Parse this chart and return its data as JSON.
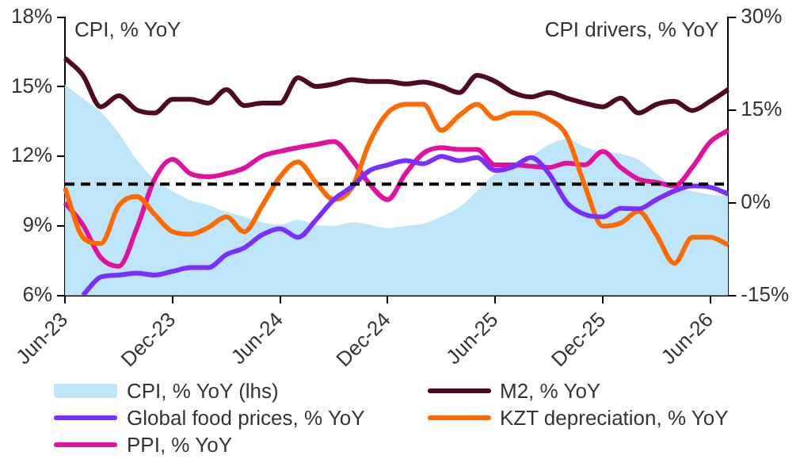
{
  "chart_data": {
    "type": "line",
    "ylabel": "CPI, % YoY",
    "y2label": "CPI drivers, % YoY",
    "categories": [
      "Jun-23",
      null,
      null,
      null,
      null,
      null,
      "Dec-23",
      null,
      null,
      null,
      null,
      null,
      "Jun-24",
      null,
      null,
      null,
      null,
      null,
      "Dec-24",
      null,
      null,
      null,
      null,
      null,
      "Jun-25",
      null,
      null,
      null,
      null,
      null,
      "Dec-25",
      null,
      null,
      null,
      null,
      null,
      "Jun-26",
      null
    ],
    "series": [
      {
        "name": "CPI, % YoY (lhs)",
        "type": "area",
        "color": "#bde6fa",
        "values": [
          15.1,
          14.5,
          13.9,
          13.0,
          11.85,
          11.0,
          10.5,
          10.1,
          9.9,
          9.6,
          9.4,
          9.15,
          9.05,
          9.25,
          9.05,
          9.0,
          9.15,
          9.05,
          8.9,
          9.0,
          9.1,
          9.4,
          9.8,
          10.5,
          11.25,
          11.6,
          12.0,
          12.5,
          12.75,
          12.4,
          12.2,
          12.1,
          11.85,
          11.25,
          10.7,
          10.5,
          10.35,
          10.3
        ]
      },
      {
        "name": "M2, % YoY",
        "axis": "y2",
        "color": "#4d0a22",
        "values": [
          23.4,
          20.6,
          15.5,
          17.3,
          15.0,
          14.5,
          16.7,
          16.7,
          16.1,
          18.3,
          15.7,
          16.1,
          16.1,
          20.2,
          18.8,
          19.2,
          19.9,
          19.6,
          19.6,
          19.2,
          19.5,
          18.8,
          17.8,
          20.6,
          19.6,
          17.8,
          17.1,
          17.8,
          16.9,
          16.1,
          15.5,
          16.9,
          14.5,
          15.9,
          16.4,
          14.9,
          16.4,
          18.3
        ]
      },
      {
        "name": "Global food prices, % YoY",
        "axis": "y2",
        "color": "#7b2fff",
        "values": [
          null,
          -15,
          -12.0,
          -11.7,
          -11.4,
          -11.7,
          -11.1,
          -10.5,
          -10.5,
          -8.4,
          -7.3,
          -5.2,
          -4.2,
          -5.6,
          -2.8,
          0.5,
          2.6,
          5.2,
          6.1,
          6.8,
          6.3,
          7.5,
          6.8,
          7.3,
          5.2,
          5.8,
          7.3,
          4.7,
          0.0,
          -1.9,
          -2.3,
          -0.9,
          -1.0,
          0.5,
          1.9,
          2.7,
          2.5,
          1.4
        ]
      },
      {
        "name": "KZT depreciation, % YoY",
        "axis": "y2",
        "color": "#ff6a00",
        "values": [
          2.4,
          -5.6,
          -6.6,
          -0.5,
          1.0,
          -1.9,
          -4.7,
          -5.1,
          -4.0,
          -2.3,
          -4.7,
          -0.5,
          4.2,
          6.6,
          3.3,
          0.5,
          2.4,
          9.8,
          14.5,
          15.9,
          15.9,
          11.7,
          14.1,
          15.9,
          13.6,
          14.5,
          14.5,
          13.5,
          10.8,
          2.8,
          -3.8,
          -3.3,
          -1.4,
          -5.2,
          -9.8,
          -5.6,
          -5.6,
          -6.8
        ]
      },
      {
        "name": "PPI, % YoY",
        "axis": "y2",
        "color": "#e0119d",
        "values": [
          0,
          -3.6,
          -8.9,
          -10.3,
          -4.2,
          3.8,
          7.0,
          4.7,
          4.2,
          4.7,
          5.6,
          7.5,
          8.3,
          8.9,
          9.4,
          9.9,
          7.0,
          3.0,
          0.5,
          4.7,
          8.0,
          8.9,
          8.6,
          8.6,
          6.1,
          6.1,
          5.9,
          5.7,
          6.4,
          6.1,
          8.3,
          5.7,
          3.8,
          3.3,
          2.7,
          5.7,
          9.8,
          11.7
        ]
      }
    ],
    "ylim": [
      6,
      18
    ],
    "yticks": [
      {
        "value": 6,
        "label": "6%"
      },
      {
        "value": 9,
        "label": "9%"
      },
      {
        "value": 12,
        "label": "12%"
      },
      {
        "value": 15,
        "label": "15%"
      },
      {
        "value": 18,
        "label": "18%"
      }
    ],
    "y2lim": [
      -15,
      30
    ],
    "y2ticks": [
      {
        "value": -15,
        "label": "-15%"
      },
      {
        "value": 0,
        "label": "0%"
      },
      {
        "value": 15,
        "label": "15%"
      },
      {
        "value": 30,
        "label": "30%"
      }
    ],
    "ref_lines": [
      {
        "axis": "y",
        "value": 10.8,
        "color": "#000000",
        "line_style": "dashed"
      }
    ],
    "legend": "bottom",
    "marker": "none",
    "line_style": "solid"
  }
}
